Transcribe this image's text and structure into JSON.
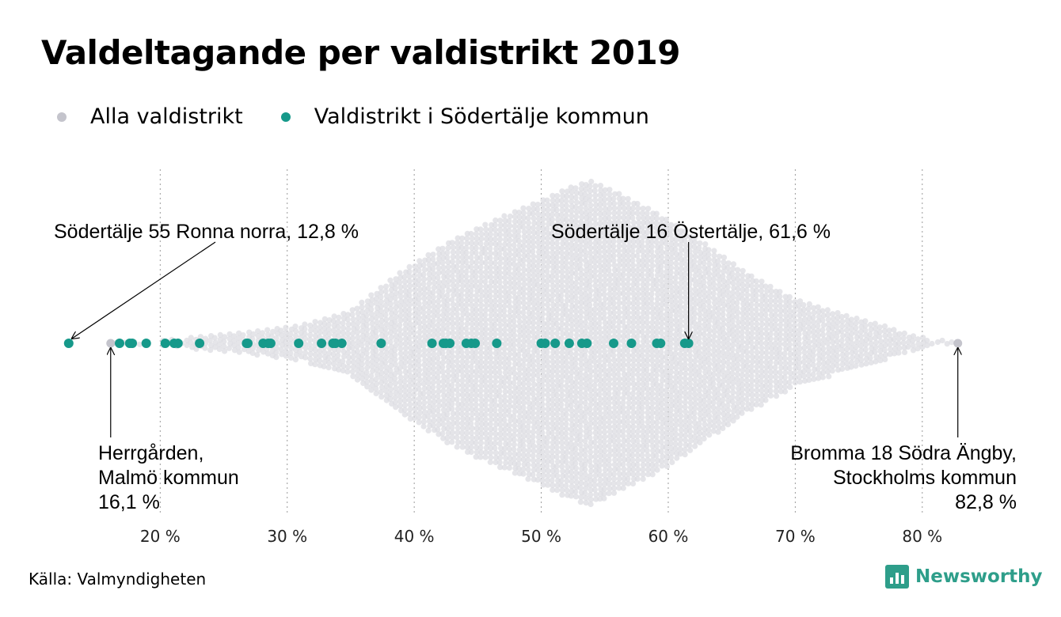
{
  "title": "Valdeltagande per valdistrikt 2019",
  "legend": [
    {
      "label": "Alla valdistrikt",
      "color": "#c4c4cc"
    },
    {
      "label": "Valdistrikt i Södertälje kommun",
      "color": "#16998a"
    }
  ],
  "source": "Källa: Valmyndigheten",
  "logo": {
    "text": "Newsworthy",
    "icon": "bar-chart-logo-icon",
    "color": "#2e9e8a"
  },
  "chart_data": {
    "type": "scatter",
    "title": "Valdeltagande per valdistrikt 2019",
    "xlabel": "",
    "xlim": [
      12,
      85
    ],
    "x_ticks": [
      20,
      30,
      40,
      50,
      60,
      70,
      80
    ],
    "tick_labels": [
      "20 %",
      "30 %",
      "40 %",
      "50 %",
      "60 %",
      "70 %",
      "80 %"
    ],
    "grid": "vertical dotted",
    "legend_position": "top-left",
    "series": [
      {
        "name": "Alla valdistrikt",
        "color": "#c4c4cc",
        "distribution_profile": [
          [
            16.1,
            0
          ],
          [
            20,
            3
          ],
          [
            23,
            8
          ],
          [
            27,
            14
          ],
          [
            31,
            22
          ],
          [
            35,
            40
          ],
          [
            39,
            90
          ],
          [
            43,
            130
          ],
          [
            47,
            160
          ],
          [
            50,
            180
          ],
          [
            52,
            195
          ],
          [
            53.8,
            205
          ],
          [
            56,
            190
          ],
          [
            59,
            165
          ],
          [
            62,
            135
          ],
          [
            66,
            90
          ],
          [
            70,
            55
          ],
          [
            74,
            35
          ],
          [
            77,
            22
          ],
          [
            79,
            10
          ],
          [
            81,
            5
          ],
          [
            82.8,
            0
          ]
        ],
        "highlight_values": [
          16.1,
          82.8
        ]
      },
      {
        "name": "Valdistrikt i Södertälje kommun",
        "color": "#16998a",
        "values": [
          12.8,
          16.8,
          17.6,
          17.8,
          18.9,
          20.4,
          21.1,
          21.4,
          23.1,
          26.8,
          26.9,
          28.1,
          28.5,
          28.7,
          30.9,
          32.7,
          33.6,
          33.8,
          34.3,
          37.4,
          41.4,
          42.3,
          42.5,
          42.8,
          44.1,
          44.5,
          44.8,
          46.5,
          50.0,
          50.3,
          51.1,
          52.2,
          53.2,
          53.6,
          55.7,
          57.1,
          59.1,
          59.4,
          61.3,
          61.6
        ]
      }
    ],
    "annotations": [
      {
        "lines": [
          "Södertälje 55 Ronna norra, 12,8 %"
        ],
        "value": 12.8,
        "align": "left",
        "position": "above"
      },
      {
        "lines": [
          "Södertälje 16 Östertälje, 61,6 %"
        ],
        "value": 61.6,
        "align": "left",
        "position": "above"
      },
      {
        "lines": [
          "Herrgården,",
          "Malmö kommun",
          "16,1 %"
        ],
        "value": 16.1,
        "align": "left",
        "position": "below"
      },
      {
        "lines": [
          "Bromma 18 Södra Ängby,",
          "Stockholms kommun",
          "82,8 %"
        ],
        "value": 82.8,
        "align": "right",
        "position": "below"
      }
    ]
  }
}
